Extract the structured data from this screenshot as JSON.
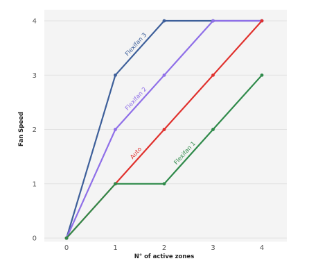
{
  "chart_data": {
    "type": "line",
    "xlabel": "N° of active zones",
    "ylabel": "Fan Speed",
    "xlim": [
      0,
      4
    ],
    "ylim": [
      0,
      4
    ],
    "x_ticks": [
      0,
      1,
      2,
      3,
      4
    ],
    "y_ticks": [
      0,
      1,
      2,
      3,
      4
    ],
    "grid": "horizontal",
    "series": [
      {
        "name": "Flexifan 3",
        "color": "#3d5f9a",
        "x": [
          0,
          1,
          2,
          3,
          4
        ],
        "y": [
          0,
          3,
          4,
          4,
          4
        ]
      },
      {
        "name": "Flexifan 2",
        "color": "#8f6fe8",
        "x": [
          0,
          1,
          2,
          3,
          4
        ],
        "y": [
          0,
          2,
          3,
          4,
          4
        ]
      },
      {
        "name": "Auto",
        "color": "#e0302c",
        "x": [
          0,
          1,
          2,
          3,
          4
        ],
        "y": [
          0,
          1,
          2,
          3,
          4
        ]
      },
      {
        "name": "Flexifan 1",
        "color": "#2f8a4a",
        "x": [
          0,
          1,
          2,
          3,
          4
        ],
        "y": [
          0,
          1,
          1,
          2,
          3
        ]
      }
    ]
  }
}
